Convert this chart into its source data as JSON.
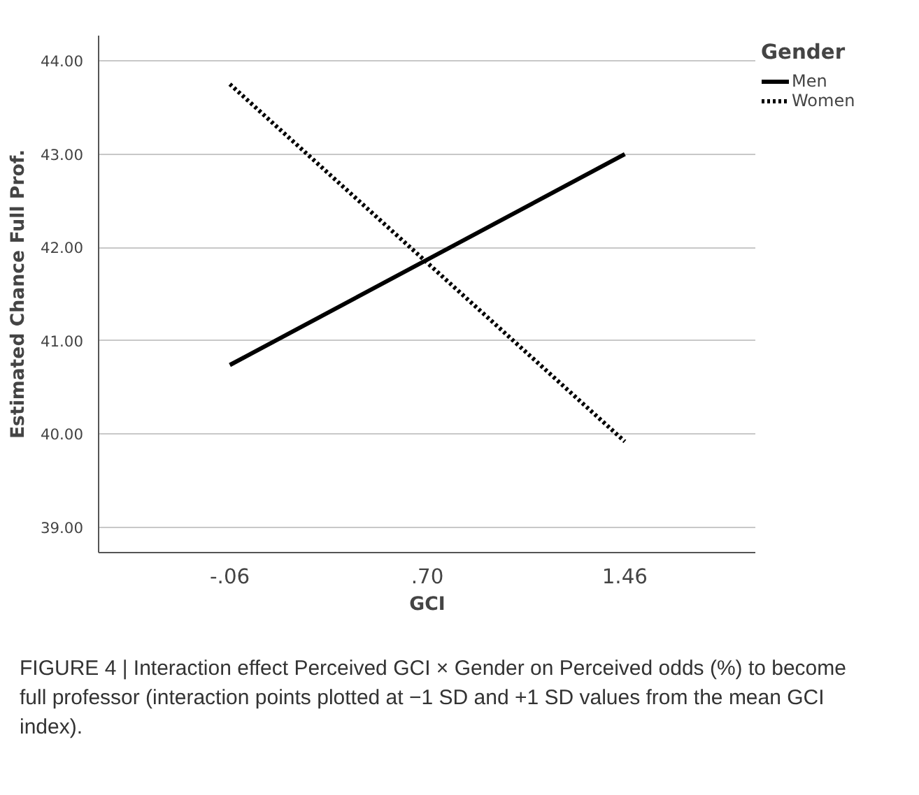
{
  "chart_data": {
    "type": "line",
    "xlabel": "GCI",
    "ylabel": "Estimated Chance Full Prof.",
    "legend_title": "Gender",
    "x": [
      -0.06,
      1.46
    ],
    "series": [
      {
        "name": "Men",
        "color": "#000000",
        "values": [
          40.74,
          43.0
        ],
        "line_style": "solid"
      },
      {
        "name": "Women",
        "color": "#000000",
        "values": [
          43.75,
          39.92
        ],
        "line_style": "dotted"
      }
    ],
    "xlim": [
      -0.565,
      1.965
    ],
    "ylim": [
      38.73,
      44.27
    ],
    "xticks": [
      {
        "value": -0.06,
        "label": "-.06"
      },
      {
        "value": 0.7,
        "label": ".70"
      },
      {
        "value": 1.46,
        "label": "1.46"
      }
    ],
    "yticks": [
      {
        "value": 39,
        "label": "39.00"
      },
      {
        "value": 40,
        "label": "40.00"
      },
      {
        "value": 41,
        "label": "41.00"
      },
      {
        "value": 42,
        "label": "42.00"
      },
      {
        "value": 43,
        "label": "43.00"
      },
      {
        "value": 44,
        "label": "44.00"
      }
    ],
    "grid": "y",
    "legend": "top right",
    "marker": "none",
    "annotations": [
      "FIGURE 4 | Interaction effect Perceived GCI × Gender on Perceived odds (%) to become full professor (interaction points plotted at −1 SD and +1 SD values from the mean GCI index)."
    ]
  }
}
